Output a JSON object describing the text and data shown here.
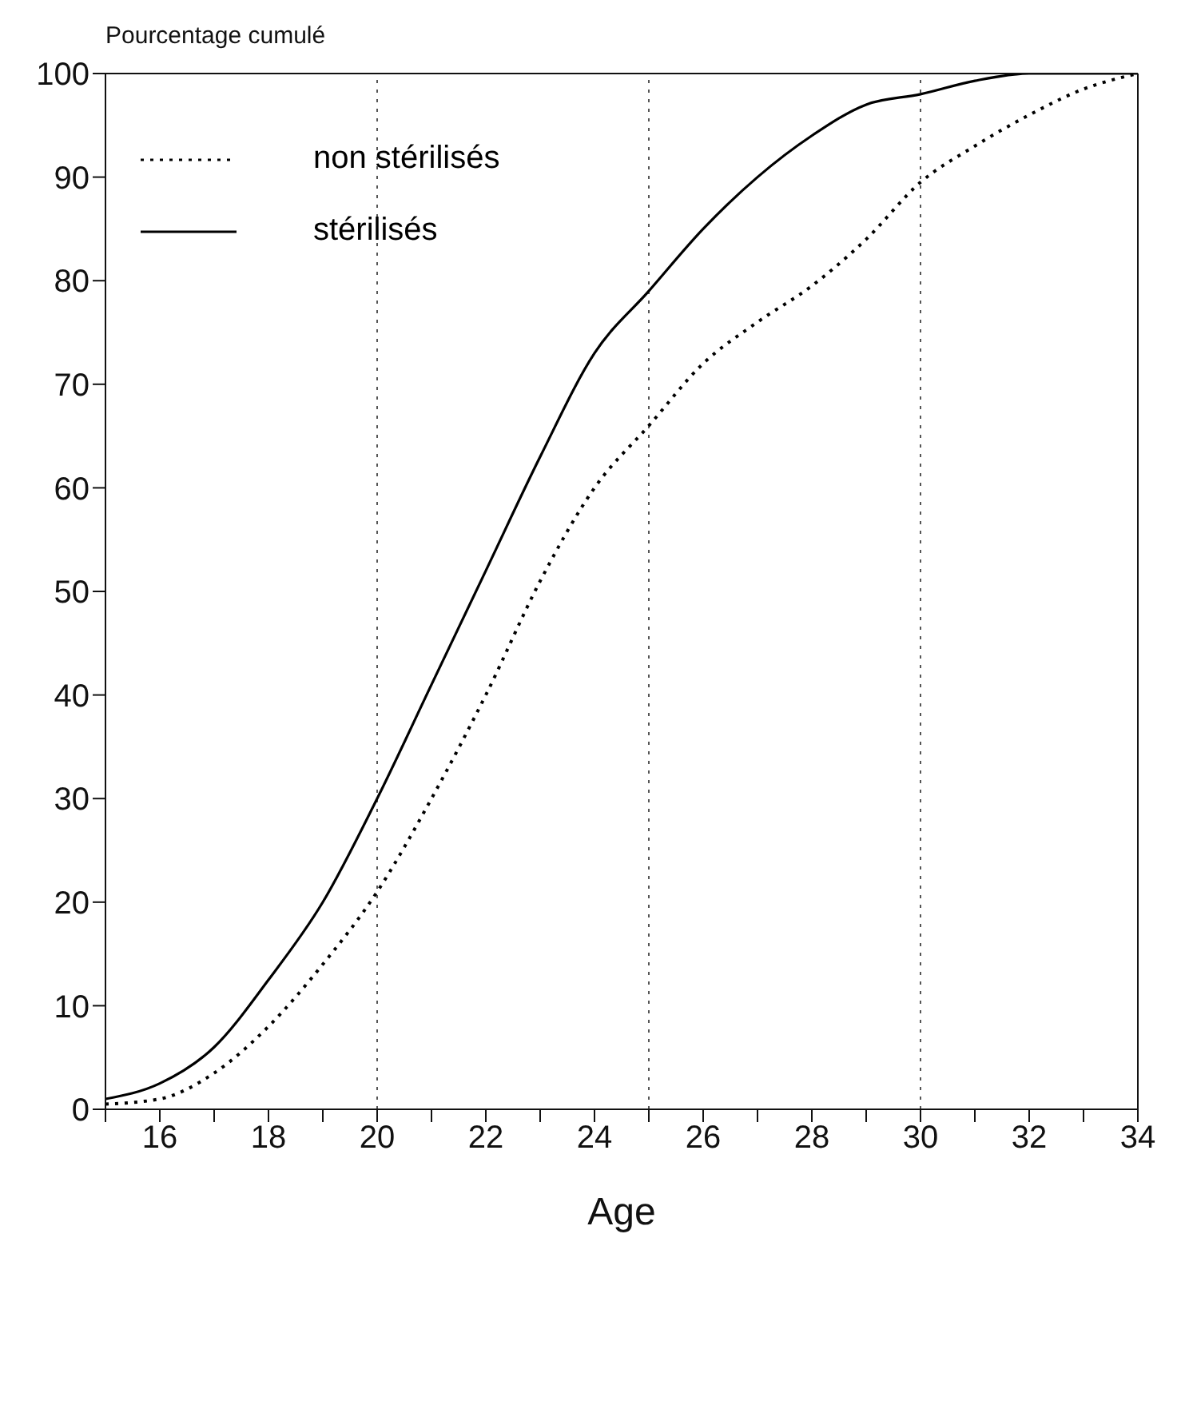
{
  "chart_data": {
    "type": "line",
    "xlabel": "Age",
    "ylabel": "Pourcentage cumulé",
    "x": [
      15,
      16,
      17,
      18,
      19,
      20,
      21,
      22,
      23,
      24,
      25,
      26,
      27,
      28,
      29,
      30,
      31,
      32,
      33,
      34
    ],
    "series": [
      {
        "name": "non stérilisés",
        "color": "#000000",
        "line_style": "dotted",
        "values": [
          0.5,
          1,
          3.5,
          8,
          14,
          21,
          30,
          40,
          51,
          60,
          66,
          72,
          76,
          79.5,
          84,
          89.5,
          93,
          96,
          98.5,
          100
        ]
      },
      {
        "name": "stérilisés",
        "color": "#000000",
        "line_style": "solid",
        "values": [
          1,
          2.5,
          6,
          12.5,
          20,
          30,
          41,
          52,
          63,
          73,
          79,
          85,
          90,
          94,
          97,
          98,
          99.3,
          100,
          100,
          100
        ]
      }
    ],
    "xlim": [
      15,
      34
    ],
    "xticks": [
      {
        "value": 15,
        "label": null
      },
      16,
      {
        "value": 17,
        "label": null
      },
      18,
      {
        "value": 19,
        "label": null
      },
      20,
      {
        "value": 21,
        "label": null
      },
      22,
      {
        "value": 23,
        "label": null
      },
      24,
      {
        "value": 25,
        "label": null
      },
      26,
      {
        "value": 27,
        "label": null
      },
      28,
      {
        "value": 29,
        "label": null
      },
      30,
      {
        "value": 31,
        "label": null
      },
      32,
      {
        "value": 33,
        "label": null
      },
      34
    ],
    "ylim": [
      0,
      100
    ],
    "yticks": [
      0,
      10,
      20,
      30,
      40,
      50,
      60,
      70,
      80,
      90,
      100
    ],
    "ref_lines": [
      {
        "axis": "x",
        "value": 20,
        "line_style": "dotted",
        "color": "#555555"
      },
      {
        "axis": "x",
        "value": 25,
        "line_style": "dotted",
        "color": "#555555"
      },
      {
        "axis": "x",
        "value": 30,
        "line_style": "dotted",
        "color": "#555555"
      }
    ],
    "grid": false,
    "legend": "top left",
    "marker": "none"
  }
}
